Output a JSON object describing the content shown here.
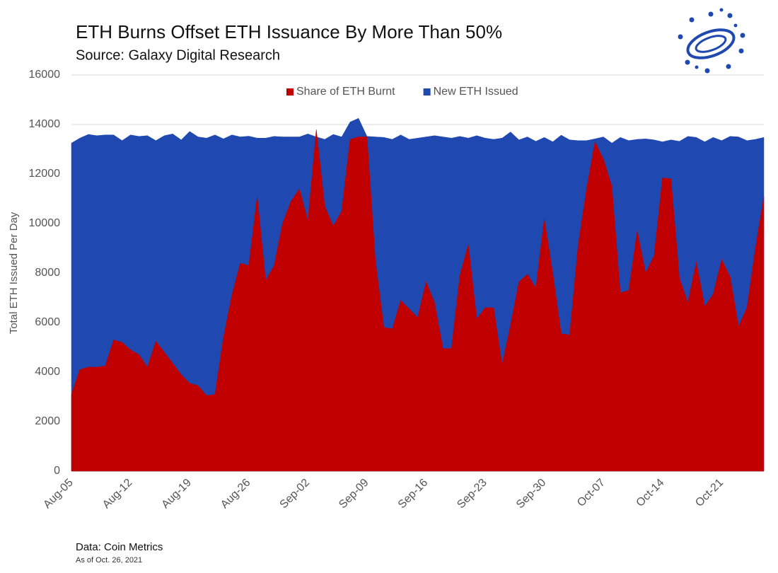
{
  "chart_data": {
    "type": "area",
    "title": "ETH Burns Offset ETH Issuance By More Than 50%",
    "subtitle": "Source: Galaxy Digital Research",
    "y_label": "Total ETH Issued Per Day",
    "source": "Data: Coin Metrics",
    "note": "As of Oct. 26, 2021",
    "legend": "top",
    "grid": true,
    "ylim": [
      0,
      16000
    ],
    "yticks": [
      0,
      2000,
      4000,
      6000,
      8000,
      10000,
      12000,
      14000,
      16000
    ],
    "categories": [
      "Aug-05",
      null,
      null,
      null,
      null,
      null,
      null,
      "Aug-12",
      null,
      null,
      null,
      null,
      null,
      null,
      "Aug-19",
      null,
      null,
      null,
      null,
      null,
      null,
      "Aug-26",
      null,
      null,
      null,
      null,
      null,
      null,
      "Sep-02",
      null,
      null,
      null,
      null,
      null,
      null,
      "Sep-09",
      null,
      null,
      null,
      null,
      null,
      null,
      "Sep-16",
      null,
      null,
      null,
      null,
      null,
      null,
      "Sep-23",
      null,
      null,
      null,
      null,
      null,
      null,
      "Sep-30",
      null,
      null,
      null,
      null,
      null,
      null,
      "Oct-07",
      null,
      null,
      null,
      null,
      null,
      null,
      "Oct-14",
      null,
      null,
      null,
      null,
      null,
      null,
      "Oct-21",
      null,
      null,
      null,
      null,
      null
    ],
    "series": [
      {
        "name": "New ETH Issued",
        "color": "#1f48b1",
        "values": [
          13250,
          13450,
          13600,
          13550,
          13580,
          13580,
          13350,
          13580,
          13520,
          13550,
          13350,
          13550,
          13620,
          13380,
          13720,
          13500,
          13450,
          13580,
          13420,
          13580,
          13500,
          13530,
          13450,
          13450,
          13520,
          13500,
          13500,
          13500,
          13620,
          13500,
          13400,
          13600,
          13500,
          14100,
          14250,
          13520,
          13500,
          13480,
          13400,
          13580,
          13400,
          13450,
          13500,
          13550,
          13500,
          13450,
          13520,
          13450,
          13550,
          13450,
          13400,
          13450,
          13700,
          13380,
          13500,
          13320,
          13480,
          13300,
          13570,
          13380,
          13350,
          13350,
          13420,
          13500,
          13250,
          13480,
          13350,
          13400,
          13420,
          13380,
          13300,
          13380,
          13320,
          13520,
          13480,
          13300,
          13480,
          13350,
          13520,
          13500,
          13350,
          13400,
          13480
        ]
      },
      {
        "name": "Share of ETH Burnt",
        "color": "#c00000",
        "values": [
          3100,
          4100,
          4200,
          4200,
          4250,
          5300,
          5200,
          4900,
          4700,
          4200,
          5250,
          4800,
          4350,
          3900,
          3550,
          3450,
          3050,
          3100,
          5400,
          7100,
          8400,
          8300,
          11100,
          7700,
          8300,
          10000,
          10900,
          11400,
          10100,
          13800,
          10700,
          9900,
          10500,
          13400,
          13500,
          13500,
          8500,
          5800,
          5750,
          6900,
          6550,
          6200,
          7650,
          6800,
          4950,
          4950,
          7900,
          9150,
          6150,
          6600,
          6600,
          4300,
          5900,
          7650,
          7950,
          7400,
          10200,
          8000,
          5550,
          5500,
          9100,
          11400,
          13300,
          12600,
          11500,
          7200,
          7300,
          9700,
          8000,
          8700,
          11850,
          11800,
          7800,
          6800,
          8450,
          6650,
          7150,
          8550,
          7850,
          5850,
          6600,
          9000,
          11100
        ]
      }
    ]
  }
}
